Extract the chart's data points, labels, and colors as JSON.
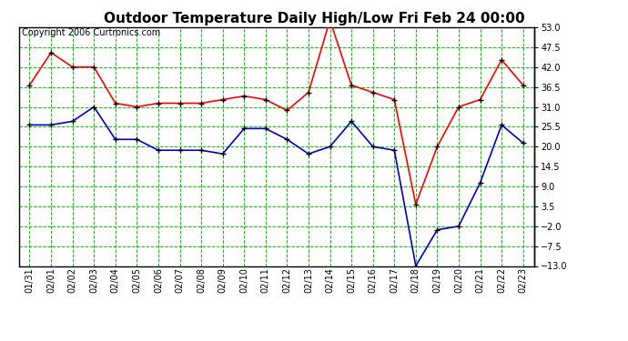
{
  "title": "Outdoor Temperature Daily High/Low Fri Feb 24 00:00",
  "copyright": "Copyright 2006 Curtronics.com",
  "x_labels": [
    "01/31",
    "02/01",
    "02/02",
    "02/03",
    "02/04",
    "02/05",
    "02/06",
    "02/07",
    "02/08",
    "02/09",
    "02/10",
    "02/11",
    "02/12",
    "02/13",
    "02/14",
    "02/15",
    "02/16",
    "02/17",
    "02/18",
    "02/19",
    "02/20",
    "02/21",
    "02/22",
    "02/23"
  ],
  "high_values": [
    37,
    46,
    42,
    42,
    32,
    31,
    32,
    32,
    32,
    33,
    34,
    33,
    30,
    35,
    55,
    37,
    35,
    33,
    4,
    20,
    31,
    33,
    44,
    37
  ],
  "low_values": [
    26,
    26,
    27,
    31,
    22,
    22,
    19,
    19,
    19,
    18,
    25,
    25,
    22,
    18,
    20,
    27,
    20,
    19,
    -13,
    -3,
    -2,
    10,
    26,
    21
  ],
  "high_color": "#ff0000",
  "low_color": "#0000cc",
  "grid_color": "#00cc00",
  "bg_color": "#ffffff",
  "marker_color": "#000000",
  "marker_size": 4,
  "line_width": 1.2,
  "ylim": [
    -13.0,
    53.0
  ],
  "yticks": [
    -13.0,
    -7.5,
    -2.0,
    3.5,
    9.0,
    14.5,
    20.0,
    25.5,
    31.0,
    36.5,
    42.0,
    47.5,
    53.0
  ],
  "title_fontsize": 11,
  "copyright_fontsize": 7,
  "tick_fontsize": 7,
  "xlabel_rotation": 90
}
